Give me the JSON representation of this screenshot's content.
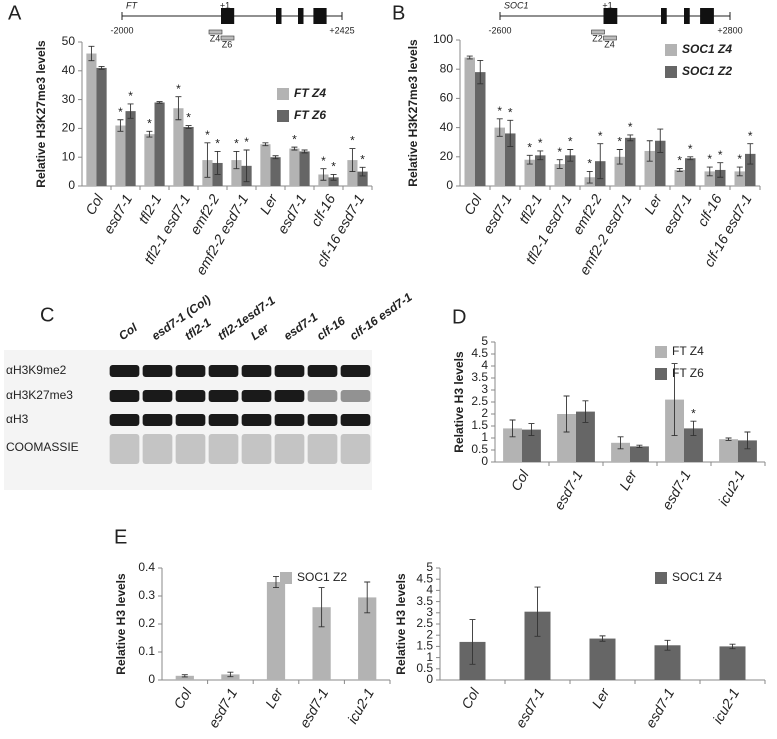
{
  "chart_data": [
    {
      "type": "bar",
      "panel": "A",
      "ylabel": "Relative H3K27me3 levels",
      "legend": "center right",
      "legend_italic": true,
      "gene_model": {
        "name": "FT",
        "start": "-2000",
        "tss": "+1",
        "end": "+2425",
        "amplicons": [
          "Z4",
          "Z6"
        ]
      },
      "categories": [
        "Col",
        "esd7-1",
        "tfl2-1",
        "tfl2-1 esd7-1",
        "emf2-2",
        "emf2-2 esd7-1",
        "Ler",
        "esd7-1",
        "clf-16",
        "clf-16 esd7-1"
      ],
      "ylim": [
        0,
        50
      ],
      "yticks": [
        0,
        10,
        20,
        30,
        40,
        50
      ],
      "series": [
        {
          "name": "FT Z4",
          "color": "#b3b3b3",
          "values": [
            46,
            21,
            18,
            27,
            9,
            9,
            14.5,
            13,
            4,
            9
          ],
          "errors": [
            2.5,
            2,
            1,
            4,
            6,
            3,
            0.5,
            0.5,
            2,
            4
          ],
          "significance": [
            null,
            "*",
            "*",
            "*",
            "*",
            "*",
            null,
            "*",
            "*",
            "*"
          ]
        },
        {
          "name": "FT Z6",
          "color": "#666666",
          "values": [
            41,
            26,
            29,
            20.5,
            8,
            7,
            10,
            12,
            3,
            5
          ],
          "errors": [
            0.5,
            2.5,
            0.3,
            0.5,
            4,
            5.5,
            0.5,
            0.5,
            1,
            1.5
          ],
          "significance": [
            null,
            "*",
            null,
            "*",
            "*",
            "*",
            null,
            null,
            "*",
            "*"
          ]
        }
      ]
    },
    {
      "type": "bar",
      "panel": "B",
      "ylabel": "Relative H3K27me3 levels",
      "legend": "upper right",
      "legend_italic": true,
      "gene_model": {
        "name": "SOC1",
        "start": "-2600",
        "tss": "+1",
        "end": "+2800",
        "amplicons": [
          "Z2",
          "Z4"
        ]
      },
      "categories": [
        "Col",
        "esd7-1",
        "tfl2-1",
        "tfl2-1 esd7-1",
        "emf2-2",
        "emf2-2 esd7-1",
        "Ler",
        "esd7-1",
        "clf-16",
        "clf-16 esd7-1"
      ],
      "ylim": [
        0,
        100
      ],
      "yticks": [
        0,
        20,
        40,
        60,
        80,
        100
      ],
      "series": [
        {
          "name": "SOC1 Z4",
          "color": "#b3b3b3",
          "values": [
            88,
            40,
            18,
            15,
            6,
            20,
            24,
            11,
            10,
            10
          ],
          "errors": [
            1,
            6,
            3,
            3,
            4,
            5,
            7,
            1,
            3,
            3
          ],
          "significance": [
            null,
            "*",
            "*",
            "*",
            "*",
            "*",
            null,
            "*",
            "*",
            "*"
          ]
        },
        {
          "name": "SOC1 Z2",
          "color": "#666666",
          "values": [
            78,
            36,
            21,
            21,
            17,
            33,
            31,
            19,
            11,
            22
          ],
          "errors": [
            8,
            9,
            3,
            4,
            12,
            2,
            8,
            1,
            5,
            7
          ],
          "significance": [
            null,
            "*",
            "*",
            "*",
            "*",
            "*",
            null,
            "*",
            "*",
            "*"
          ]
        }
      ]
    },
    {
      "type": "bar",
      "panel": "D",
      "ylabel": "Relative H3 levels",
      "legend": "upper right",
      "legend_italic": false,
      "categories": [
        "Col",
        "esd7-1",
        "Ler",
        "esd7-1",
        "icu2-1"
      ],
      "ylim": [
        0,
        5
      ],
      "yticks": [
        0,
        0.5,
        1,
        1.5,
        2,
        2.5,
        3,
        3.5,
        4,
        4.5,
        5
      ],
      "series": [
        {
          "name": "FT Z4",
          "color": "#b3b3b3",
          "values": [
            1.4,
            2.0,
            0.8,
            2.6,
            0.95
          ],
          "errors": [
            0.35,
            0.75,
            0.25,
            1.5,
            0.05
          ],
          "significance": [
            null,
            null,
            null,
            null,
            null
          ]
        },
        {
          "name": "FT Z6",
          "color": "#666666",
          "values": [
            1.35,
            2.1,
            0.65,
            1.4,
            0.9
          ],
          "errors": [
            0.25,
            0.45,
            0.05,
            0.3,
            0.35
          ],
          "significance": [
            null,
            null,
            null,
            "*",
            null
          ]
        }
      ]
    },
    {
      "type": "bar",
      "panel": "E",
      "ylabel": "Relative H3 levels",
      "legend": "upper right",
      "legend_italic": false,
      "categories": [
        "Col",
        "esd7-1",
        "Ler",
        "esd7-1",
        "icu2-1"
      ],
      "ylim": [
        0,
        0.4
      ],
      "yticks": [
        0,
        0.1,
        0.2,
        0.3,
        0.4
      ],
      "series": [
        {
          "name": "SOC1 Z2",
          "color": "#b3b3b3",
          "values": [
            0.015,
            0.02,
            0.35,
            0.26,
            0.295
          ],
          "errors": [
            0.004,
            0.008,
            0.02,
            0.07,
            0.055
          ],
          "significance": [
            null,
            null,
            null,
            null,
            null
          ]
        }
      ]
    },
    {
      "type": "bar",
      "ylabel": "Relative H3 levels",
      "legend": "upper right",
      "legend_italic": false,
      "categories": [
        "Col",
        "esd7-1",
        "Ler",
        "esd7-1",
        "icu2-1"
      ],
      "ylim": [
        0,
        5
      ],
      "yticks": [
        0,
        0.5,
        1,
        1.5,
        2,
        2.5,
        3,
        3.5,
        4,
        4.5,
        5
      ],
      "series": [
        {
          "name": "SOC1 Z4",
          "color": "#666666",
          "values": [
            1.7,
            3.05,
            1.85,
            1.55,
            1.5
          ],
          "errors": [
            1.0,
            1.1,
            0.12,
            0.22,
            0.1
          ],
          "significance": [
            null,
            null,
            null,
            null,
            null
          ]
        }
      ]
    }
  ],
  "blot": {
    "panel": "C",
    "lanes": [
      "Col",
      "esd7-1 (Col)",
      "tfl2-1",
      "tfl2-1esd7-1",
      "Ler",
      "esd7-1",
      "clf-16",
      "clf-16 esd7-1"
    ],
    "rows": [
      "αH3K9me2",
      "αH3K27me3",
      "αH3",
      "COOMASSIE"
    ]
  }
}
